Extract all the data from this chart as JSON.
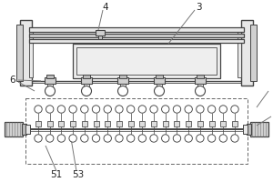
{
  "line_color": "#777777",
  "dark_line": "#444444",
  "fill_light": "#e8e8e8",
  "fill_mid": "#d0d0d0",
  "fill_dark": "#bbbbbb",
  "dashed_color": "#666666",
  "label_color": "#222222"
}
